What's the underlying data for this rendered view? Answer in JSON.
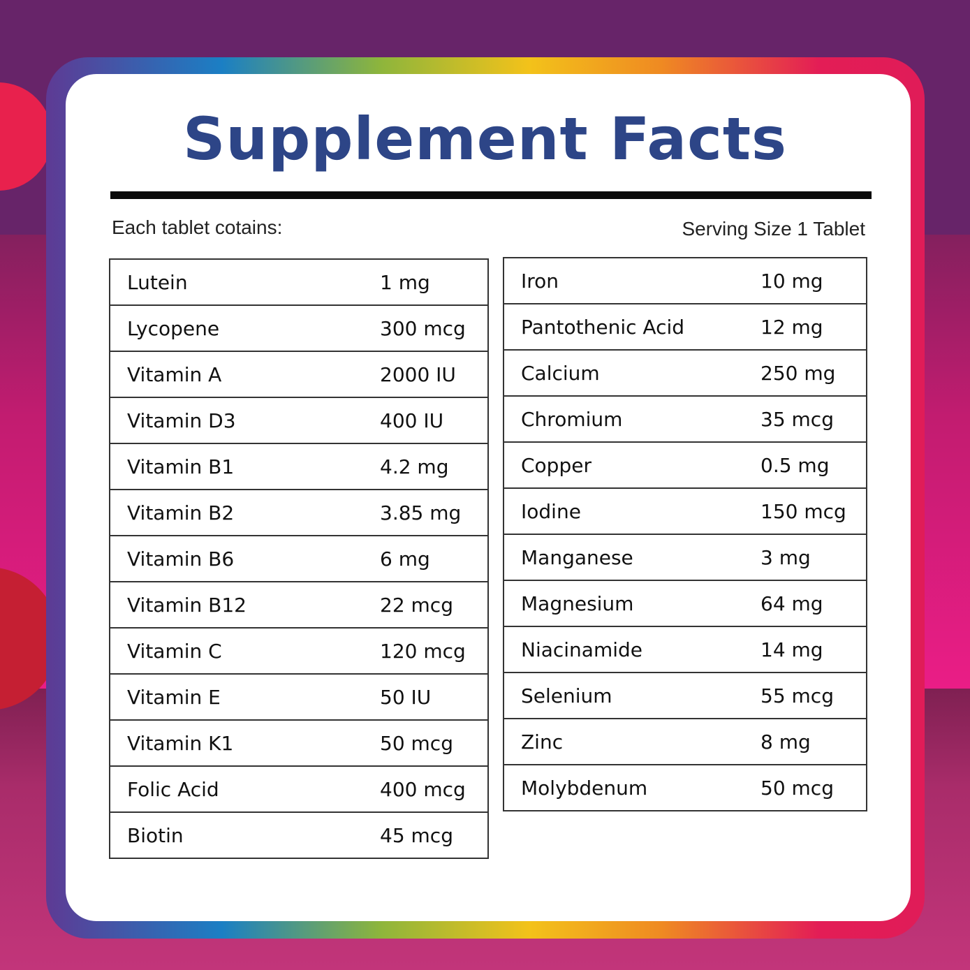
{
  "header": {
    "title": "Supplement Facts",
    "intro": "Each tablet cotains:",
    "serving_size": "Serving Size 1 Tablet"
  },
  "colors": {
    "title": "#2d4587",
    "background_top": "#672469",
    "background_mid": "#ea1d86",
    "background_bottom": "#c2357a",
    "rule": "#0a0a0a"
  },
  "left_table": {
    "rows": [
      {
        "name": "Lutein",
        "amount": "1 mg"
      },
      {
        "name": "Lycopene",
        "amount": "300 mcg"
      },
      {
        "name": "Vitamin A",
        "amount": "2000 IU"
      },
      {
        "name": "Vitamin D3",
        "amount": "400 IU"
      },
      {
        "name": "Vitamin B1",
        "amount": "4.2 mg"
      },
      {
        "name": "Vitamin B2",
        "amount": "3.85 mg"
      },
      {
        "name": "Vitamin B6",
        "amount": "6 mg"
      },
      {
        "name": "Vitamin B12",
        "amount": "22 mcg"
      },
      {
        "name": "Vitamin C",
        "amount": "120 mcg"
      },
      {
        "name": "Vitamin E",
        "amount": "50 IU"
      },
      {
        "name": "Vitamin K1",
        "amount": "50 mcg"
      },
      {
        "name": "Folic Acid",
        "amount": "400 mcg"
      },
      {
        "name": "Biotin",
        "amount": "45 mcg"
      }
    ]
  },
  "right_table": {
    "rows": [
      {
        "name": "Iron",
        "amount": "10 mg"
      },
      {
        "name": "Pantothenic Acid",
        "amount": "12 mg"
      },
      {
        "name": "Calcium",
        "amount": "250 mg"
      },
      {
        "name": "Chromium",
        "amount": "35 mcg"
      },
      {
        "name": "Copper",
        "amount": "0.5 mg"
      },
      {
        "name": "Iodine",
        "amount": "150 mcg"
      },
      {
        "name": "Manganese",
        "amount": "3 mg"
      },
      {
        "name": "Magnesium",
        "amount": "64 mg"
      },
      {
        "name": "Niacinamide",
        "amount": "14 mg"
      },
      {
        "name": "Selenium",
        "amount": "55 mcg"
      },
      {
        "name": "Zinc",
        "amount": "8 mg"
      },
      {
        "name": "Molybdenum",
        "amount": "50 mcg"
      }
    ]
  }
}
